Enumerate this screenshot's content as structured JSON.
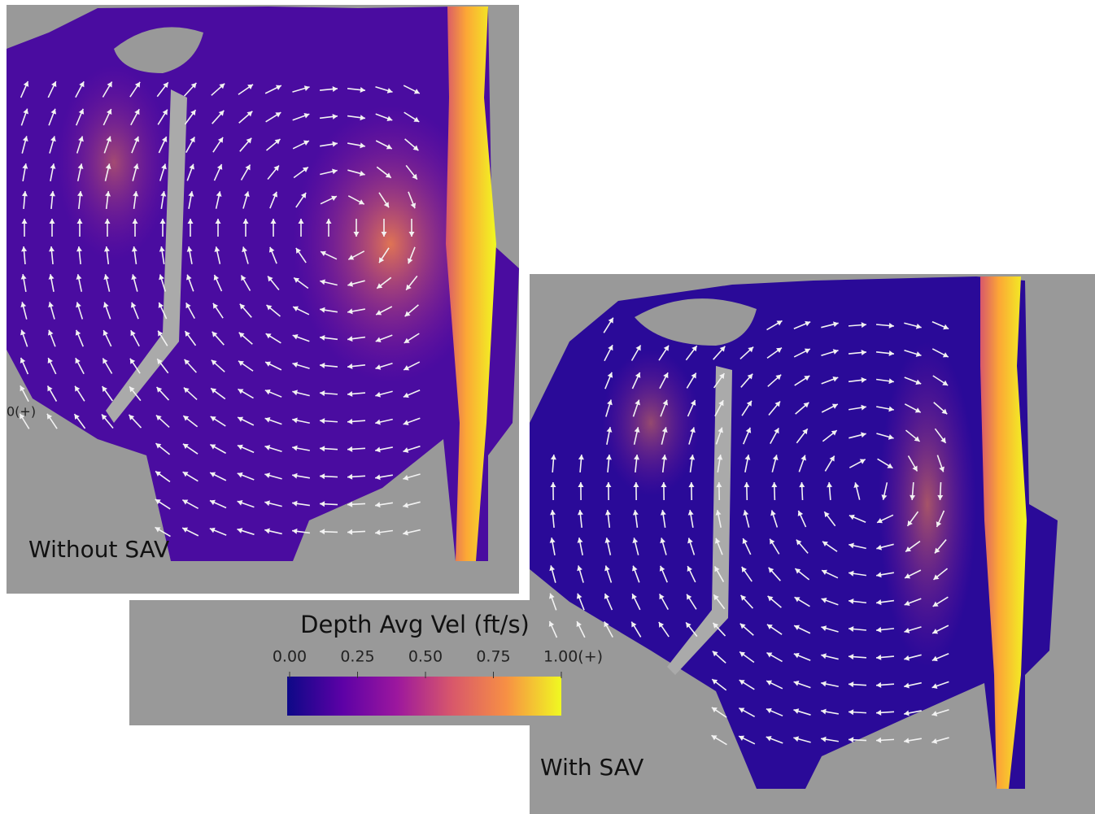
{
  "panels": [
    {
      "label": "Without SAV",
      "clipped_label": "0(+)"
    },
    {
      "label": "With SAV"
    }
  ],
  "colorbar": {
    "title": "Depth Avg Vel (ft/s)",
    "ticks": [
      "0.00",
      "0.25",
      "0.50",
      "0.75",
      "1.00(+)"
    ]
  }
}
